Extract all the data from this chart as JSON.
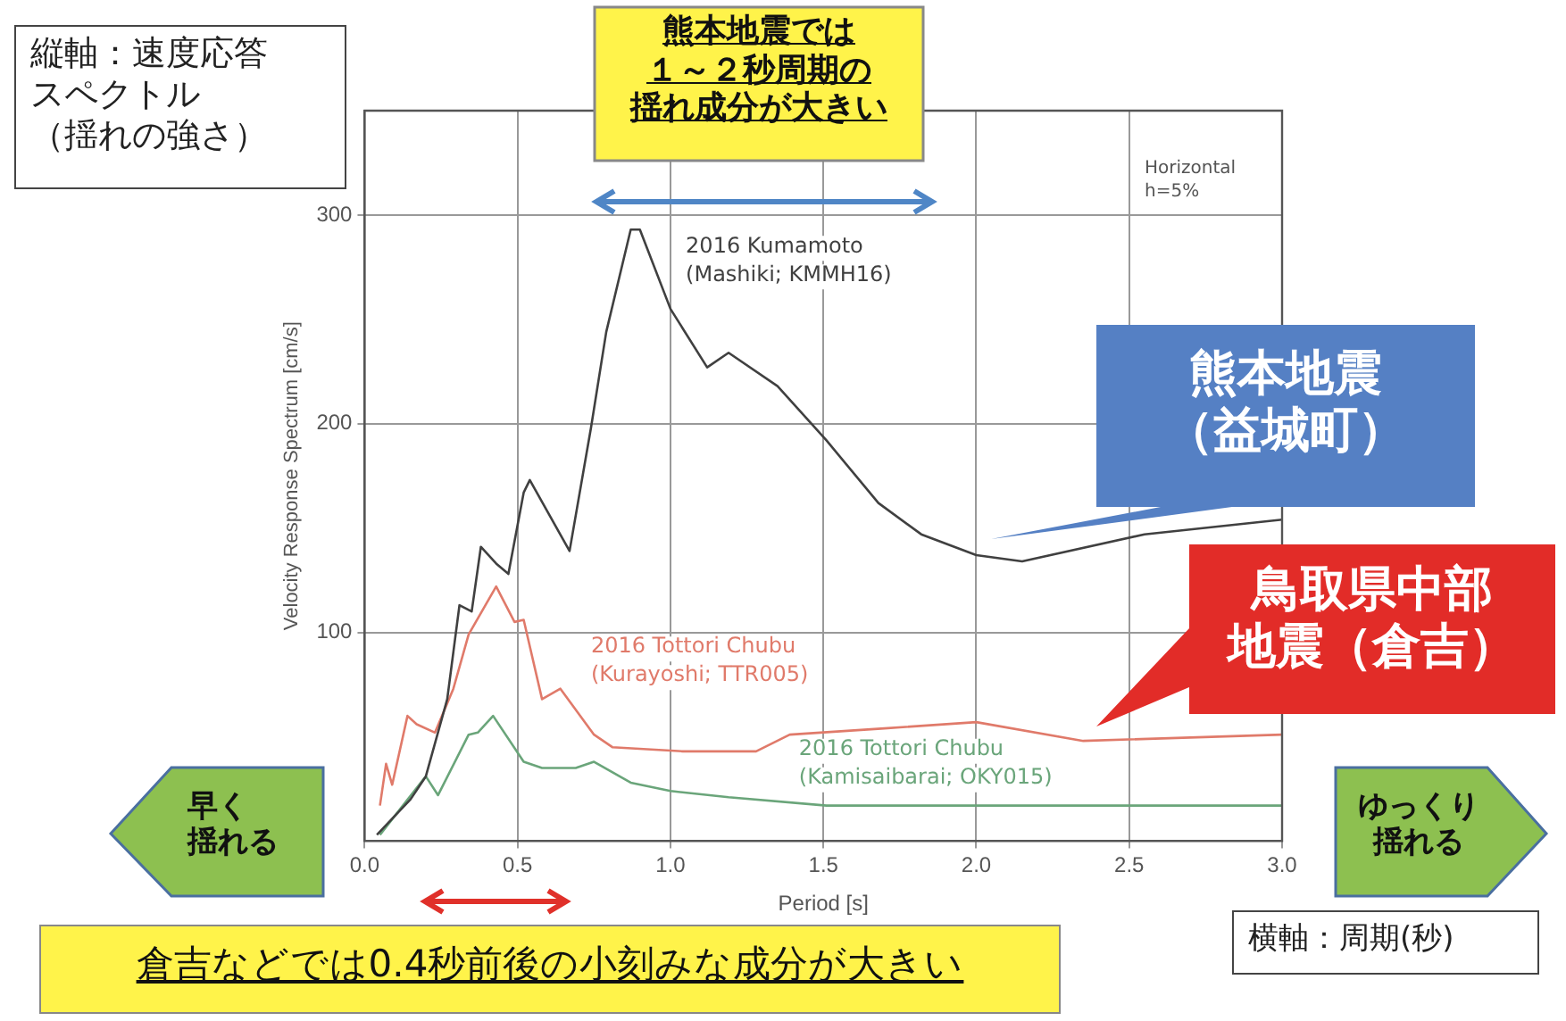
{
  "chart_data": {
    "type": "line",
    "xlabel": "Period [s]",
    "ylabel": "Velocity Response Spectrum [cm/s]",
    "xlim": [
      0,
      3
    ],
    "xticks": [
      {
        "value": 0,
        "label": "0.0"
      },
      0.5,
      {
        "value": 1,
        "label": "1.0"
      },
      1.5,
      {
        "value": 2,
        "label": "2.0"
      },
      2.5,
      {
        "value": 3,
        "label": "3.0"
      }
    ],
    "ylim": [
      0,
      350
    ],
    "yticks": [
      100,
      200,
      300
    ],
    "grid": true,
    "legend": false,
    "marker": "none",
    "line_style": "solid",
    "series": [
      {
        "name": "2016 Kumamoto\n(Mashiki; KMMH16)",
        "color": "#404040",
        "x": [
          0.04,
          0.15,
          0.2,
          0.27,
          0.31,
          0.35,
          0.38,
          0.43,
          0.47,
          0.52,
          0.54,
          0.67,
          0.74,
          0.79,
          0.87,
          0.9,
          1.0,
          1.12,
          1.19,
          1.35,
          1.51,
          1.68,
          1.82,
          2.0,
          2.15,
          2.55,
          3.0
        ],
        "values": [
          3,
          20,
          31,
          68,
          113,
          110,
          141,
          133,
          128,
          167,
          173,
          139,
          198,
          244,
          293,
          293,
          255,
          227,
          234,
          218,
          192,
          162,
          147,
          137,
          134,
          147,
          154
        ]
      },
      {
        "name": "2016 Tottori Chubu\n(Kurayoshi; TTR005)",
        "color": "#e07a6a",
        "x": [
          0.05,
          0.07,
          0.09,
          0.14,
          0.17,
          0.23,
          0.29,
          0.34,
          0.43,
          0.49,
          0.52,
          0.58,
          0.64,
          0.75,
          0.81,
          1.04,
          1.28,
          1.39,
          1.7,
          2.0,
          2.35,
          3.0
        ],
        "values": [
          17,
          37,
          27,
          60,
          56,
          52,
          73,
          99,
          122,
          105,
          106,
          68,
          73,
          51,
          45,
          43,
          43,
          51,
          54,
          57,
          48,
          51
        ]
      },
      {
        "name": "2016 Tottori Chubu\n(Kamisaibarai; OKY015)",
        "color": "#6aa57a",
        "x": [
          0.05,
          0.2,
          0.24,
          0.34,
          0.37,
          0.42,
          0.52,
          0.58,
          0.69,
          0.75,
          0.87,
          1.0,
          1.19,
          1.51,
          2.05,
          3.0
        ],
        "values": [
          3,
          31,
          22,
          51,
          52,
          60,
          38,
          35,
          35,
          38,
          28,
          24,
          21,
          17,
          17,
          17
        ]
      }
    ],
    "annotations": [
      "縦軸：速度応答スペクトル（揺れの強さ）",
      "熊本地震では１～２秒周期の揺れ成分が大きい",
      "Horizontal\nh=5%",
      "熊本地震（益城町）",
      "鳥取県中部地震（倉吉）",
      "早く揺れる",
      "ゆっくり揺れる",
      "倉吉などでは0.4秒前後の小刻みな成分が大きい",
      "横軸：周期(秒)"
    ]
  }
}
